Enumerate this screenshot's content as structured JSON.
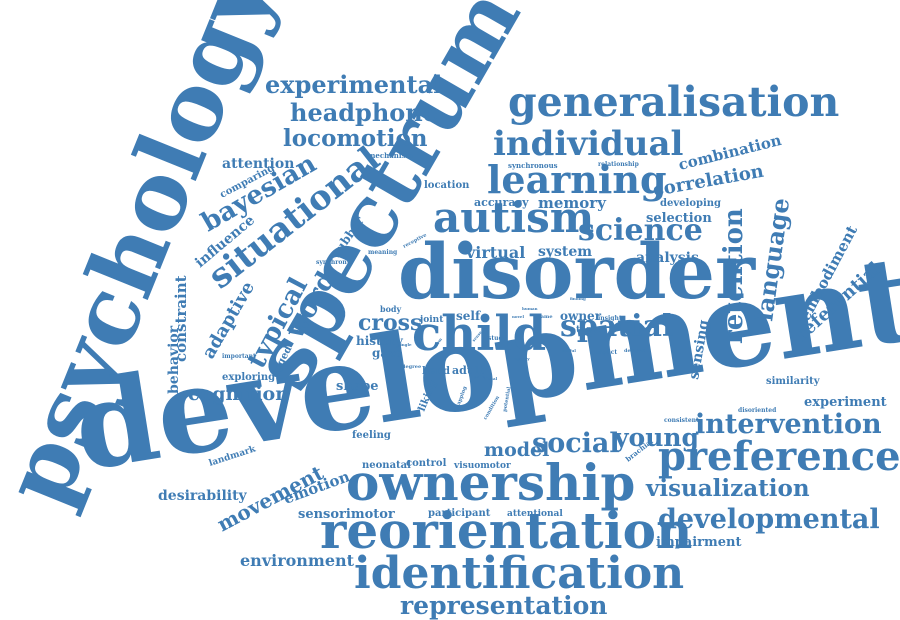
{
  "word_color": "#3f7cb4",
  "words": {
    "psychology": "psychology",
    "development": "development",
    "spectrum": "spectrum",
    "disorder": "disorder",
    "ownership": "ownership",
    "reorientation": "reorientation",
    "identification": "identification",
    "generalisation": "generalisation",
    "preference": "preference",
    "child": "child",
    "autism": "autism",
    "learning": "learning",
    "individual": "individual",
    "experimental": "experimental",
    "headphone": "headphone",
    "locomotion": "locomotion",
    "situational": "situational",
    "bayesian": "bayesian",
    "science": "science",
    "spatial": "spatial",
    "developmental": "developmental",
    "intervention": "intervention",
    "representation": "representation",
    "social": "social",
    "young": "young",
    "visualization": "visualization",
    "retention": "retention",
    "language": "language",
    "word": "word",
    "typical": "typical",
    "movement": "movement",
    "cognition": "cognition",
    "cross": "cross",
    "model": "model",
    "correlation": "correlation",
    "combination": "combination",
    "memory": "memory",
    "virtual": "virtual",
    "system": "system",
    "analysis": "analysis",
    "selection": "selection",
    "embodiment": "embodiment",
    "referential": "referential",
    "adaptive": "adaptive",
    "constraint": "constraint",
    "behavior": "behavior",
    "influence": "influence",
    "attention": "attention",
    "comparing": "comparing",
    "environment": "environment",
    "desirability": "desirability",
    "emotion": "emotion",
    "sensorimotor": "sensorimotor",
    "participant": "participant",
    "impairment": "impairment",
    "experiment": "experiment",
    "similarity": "similarity",
    "sensing": "sensing",
    "shape": "shape",
    "exploring": "exploring",
    "history": "history",
    "gaze": "gaze",
    "self": "self",
    "owner": "owner",
    "hand": "hand",
    "adult": "adult",
    "feeling": "feeling",
    "landmark": "landmark",
    "neonatal": "neonatal",
    "control": "control",
    "visuomotor": "visuomotor",
    "attentional": "attentional",
    "accuracy": "accuracy",
    "location": "location",
    "developing": "developing",
    "rubber": "rubber",
    "mechanism": "mechanism",
    "synchronous": "synchronous",
    "relationship": "relationship",
    "meaning": "meaning",
    "receptive": "receptive",
    "synchrony": "synchrony",
    "important": "important",
    "egged": "egged",
    "body": "body",
    "joint": "joint",
    "task": "task",
    "insight": "insight",
    "study": "study",
    "liking": "liking",
    "impact": "impact",
    "delayed": "delayed",
    "consistent": "consistent",
    "disoriented": "disoriented",
    "brachial": "brachial",
    "frame": "frame",
    "finding": "finding",
    "degree": "degree",
    "mapping": "mapping",
    "condition": "condition",
    "potential": "potential",
    "agency": "agency",
    "useful": "useful",
    "form": "form",
    "sense": "sense",
    "visual": "visual",
    "novel": "novel",
    "human": "human",
    "single": "single",
    "pairs": "pairs"
  }
}
